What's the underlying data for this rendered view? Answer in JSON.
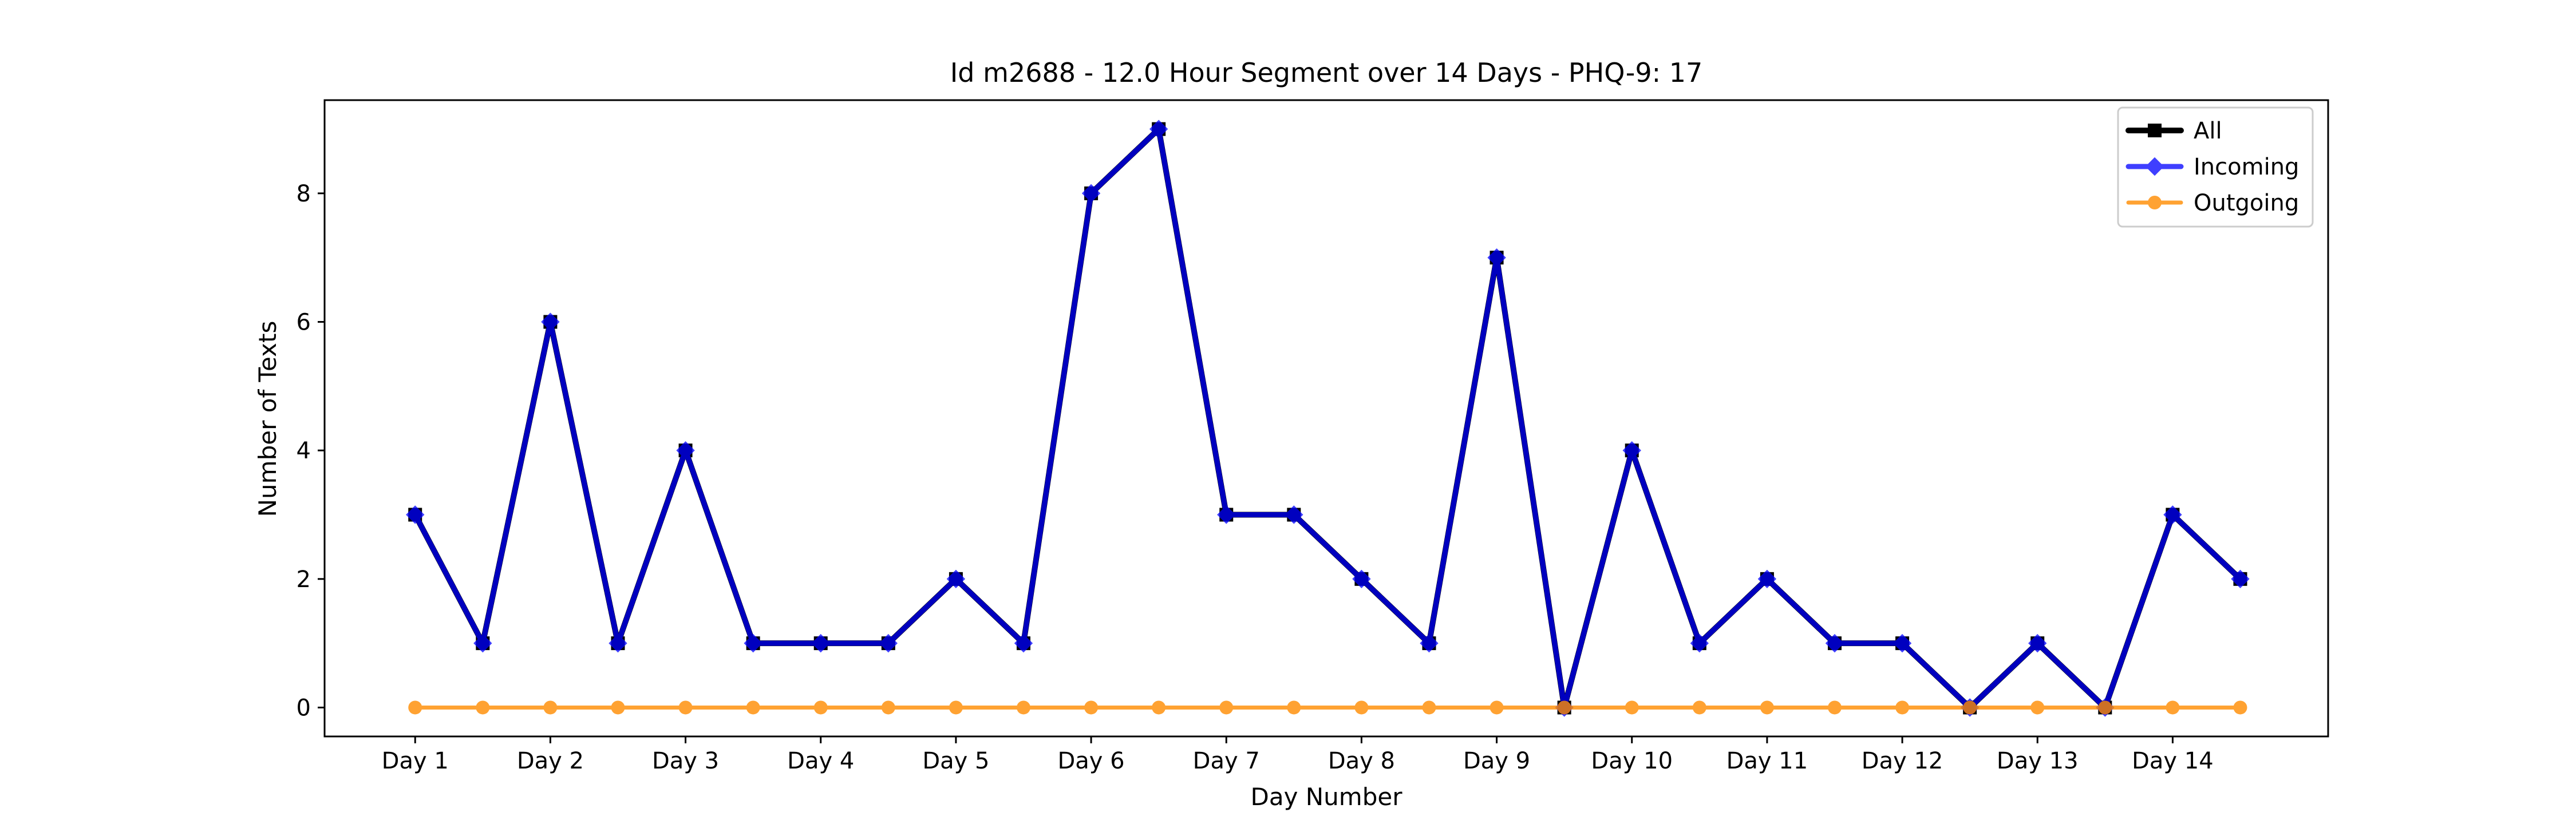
{
  "chart_data": {
    "type": "line",
    "title": "Id m2688 - 12.0 Hour Segment over 14 Days - PHQ-9: 17",
    "xlabel": "Day Number",
    "ylabel": "Number of Texts",
    "x": [
      1,
      1.5,
      2,
      2.5,
      3,
      3.5,
      4,
      4.5,
      5,
      5.5,
      6,
      6.5,
      7,
      7.5,
      8,
      8.5,
      9,
      9.5,
      10,
      10.5,
      11,
      11.5,
      12,
      12.5,
      13,
      13.5,
      14,
      14.5
    ],
    "x_ticks": [
      1,
      2,
      3,
      4,
      5,
      6,
      7,
      8,
      9,
      10,
      11,
      12,
      13,
      14
    ],
    "x_tick_labels": [
      "Day 1",
      "Day 2",
      "Day 3",
      "Day 4",
      "Day 5",
      "Day 6",
      "Day 7",
      "Day 8",
      "Day 9",
      "Day 10",
      "Day 11",
      "Day 12",
      "Day 13",
      "Day 14"
    ],
    "y_ticks": [
      0,
      2,
      4,
      6,
      8
    ],
    "xlim": [
      0.33,
      15.15
    ],
    "ylim": [
      -0.45,
      9.45
    ],
    "grid": false,
    "legend_position": "top-right",
    "series": [
      {
        "name": "All",
        "color": "#000000",
        "marker": "square",
        "values": [
          3,
          1,
          6,
          1,
          4,
          1,
          1,
          1,
          2,
          1,
          8,
          9,
          3,
          3,
          2,
          1,
          7,
          0,
          4,
          1,
          2,
          1,
          1,
          0,
          1,
          0,
          3,
          2
        ]
      },
      {
        "name": "Incoming",
        "color": "#0000ff",
        "marker": "diamond",
        "values": [
          3,
          1,
          6,
          1,
          4,
          1,
          1,
          1,
          2,
          1,
          8,
          9,
          3,
          3,
          2,
          1,
          7,
          0,
          4,
          1,
          2,
          1,
          1,
          0,
          1,
          0,
          3,
          2
        ]
      },
      {
        "name": "Outgoing",
        "color": "#ff8c00",
        "marker": "circle",
        "values": [
          0,
          0,
          0,
          0,
          0,
          0,
          0,
          0,
          0,
          0,
          0,
          0,
          0,
          0,
          0,
          0,
          0,
          0,
          0,
          0,
          0,
          0,
          0,
          0,
          0,
          0,
          0,
          0
        ]
      }
    ]
  }
}
